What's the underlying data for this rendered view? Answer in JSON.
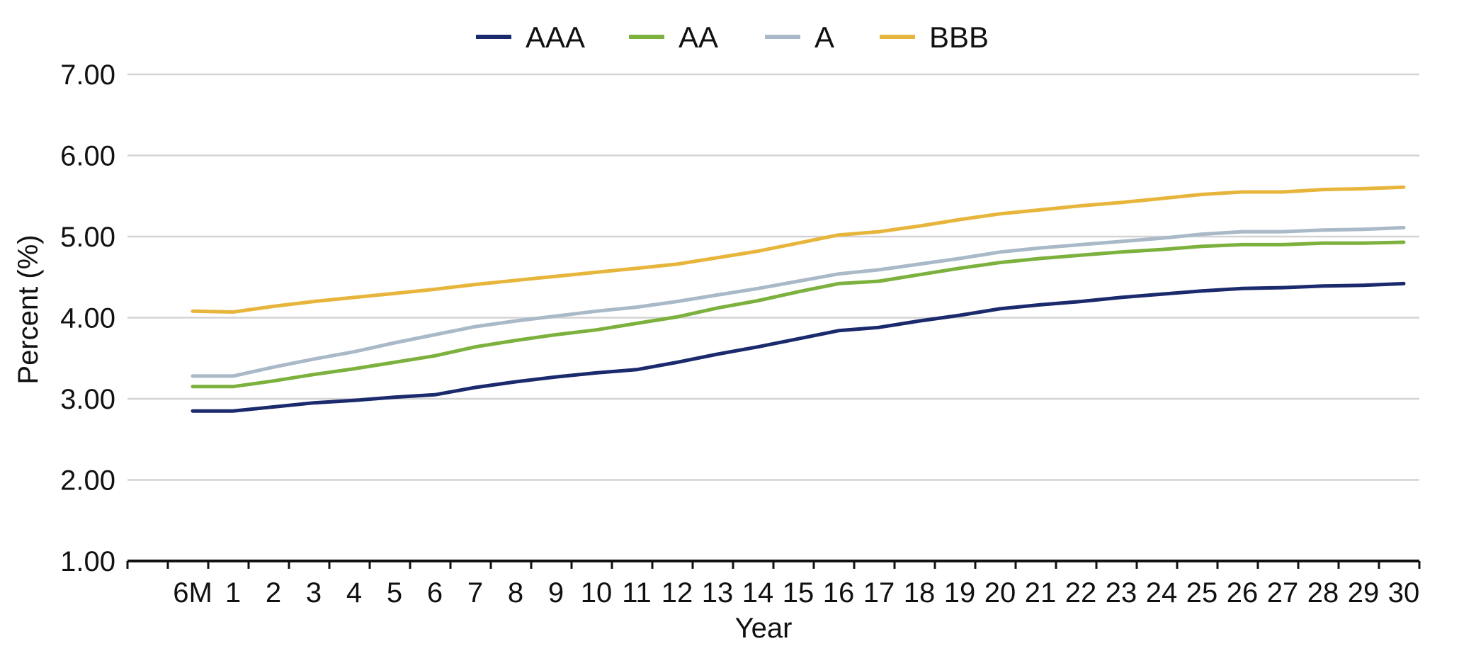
{
  "chart_data": {
    "type": "line",
    "xlabel": "Year",
    "ylabel": "Percent (%)",
    "categories": [
      "6M",
      "1",
      "2",
      "3",
      "4",
      "5",
      "6",
      "7",
      "8",
      "9",
      "10",
      "11",
      "12",
      "13",
      "14",
      "15",
      "16",
      "17",
      "18",
      "19",
      "20",
      "21",
      "22",
      "23",
      "24",
      "25",
      "26",
      "27",
      "28",
      "29",
      "30"
    ],
    "yticks": [
      "1.00",
      "2.00",
      "3.00",
      "4.00",
      "5.00",
      "6.00",
      "7.00"
    ],
    "ylim": [
      1,
      7
    ],
    "grid": true,
    "legend_position": "top-center",
    "series": [
      {
        "name": "AAA",
        "color": "#1a2a6c",
        "values": [
          2.85,
          2.85,
          2.9,
          2.95,
          2.98,
          3.02,
          3.05,
          3.14,
          3.21,
          3.27,
          3.32,
          3.36,
          3.45,
          3.55,
          3.64,
          3.74,
          3.84,
          3.88,
          3.96,
          4.03,
          4.11,
          4.16,
          4.2,
          4.25,
          4.29,
          4.33,
          4.36,
          4.37,
          4.39,
          4.4,
          4.42
        ]
      },
      {
        "name": "AA",
        "color": "#7db13e",
        "values": [
          3.15,
          3.15,
          3.22,
          3.3,
          3.37,
          3.45,
          3.53,
          3.64,
          3.72,
          3.79,
          3.85,
          3.93,
          4.01,
          4.12,
          4.21,
          4.32,
          4.42,
          4.45,
          4.53,
          4.61,
          4.68,
          4.73,
          4.77,
          4.81,
          4.84,
          4.88,
          4.9,
          4.9,
          4.92,
          4.92,
          4.93
        ]
      },
      {
        "name": "A",
        "color": "#a9b9c8",
        "values": [
          3.28,
          3.28,
          3.39,
          3.49,
          3.58,
          3.69,
          3.79,
          3.89,
          3.96,
          4.02,
          4.08,
          4.13,
          4.2,
          4.28,
          4.36,
          4.45,
          4.54,
          4.59,
          4.66,
          4.73,
          4.81,
          4.86,
          4.9,
          4.94,
          4.98,
          5.03,
          5.06,
          5.06,
          5.08,
          5.09,
          5.11
        ]
      },
      {
        "name": "BBB",
        "color": "#e8b53c",
        "values": [
          4.08,
          4.07,
          4.14,
          4.2,
          4.25,
          4.3,
          4.35,
          4.41,
          4.46,
          4.51,
          4.56,
          4.61,
          4.66,
          4.74,
          4.82,
          4.92,
          5.02,
          5.06,
          5.13,
          5.21,
          5.28,
          5.33,
          5.38,
          5.42,
          5.47,
          5.52,
          5.55,
          5.55,
          5.58,
          5.59,
          5.61
        ]
      }
    ]
  }
}
